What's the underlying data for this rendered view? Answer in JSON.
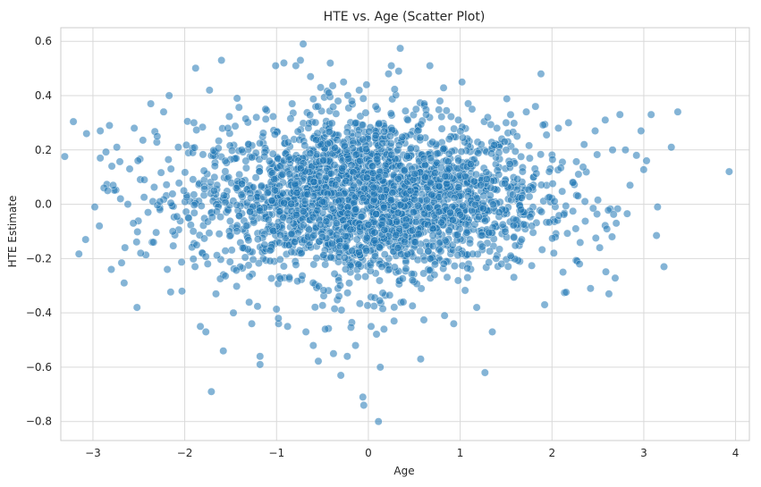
{
  "chart_data": {
    "type": "scatter",
    "title": "HTE vs. Age (Scatter Plot)",
    "xlabel": "Age",
    "ylabel": "HTE Estimate",
    "xlim": [
      -3.35,
      4.15
    ],
    "ylim": [
      -0.87,
      0.65
    ],
    "xticks": [
      -3,
      -2,
      -1,
      0,
      1,
      2,
      3,
      4
    ],
    "xtick_labels": [
      "−3",
      "−2",
      "−1",
      "0",
      "1",
      "2",
      "3",
      "4"
    ],
    "yticks": [
      -0.8,
      -0.6,
      -0.4,
      -0.2,
      0.0,
      0.2,
      0.4,
      0.6
    ],
    "ytick_labels": [
      "−0.8",
      "−0.6",
      "−0.4",
      "−0.2",
      "0.0",
      "0.2",
      "0.4",
      "0.6"
    ],
    "grid": true,
    "point_color": "#1f77b4",
    "point_alpha": 0.55,
    "series": [
      {
        "name": "HTE",
        "points": [
          [
            -3.07,
            0.26
          ],
          [
            -3.08,
            -0.13
          ],
          [
            -2.98,
            -0.01
          ],
          [
            -2.92,
            0.17
          ],
          [
            -2.92,
            0.27
          ],
          [
            -2.93,
            -0.08
          ],
          [
            -2.88,
            0.06
          ],
          [
            -2.84,
            0.05
          ],
          [
            -2.82,
            0.29
          ],
          [
            -2.8,
            -0.24
          ],
          [
            -2.78,
            0.07
          ],
          [
            -2.74,
            0.21
          ],
          [
            -2.7,
            0.02
          ],
          [
            -2.66,
            -0.29
          ],
          [
            -2.62,
            0.0
          ],
          [
            -2.6,
            0.13
          ],
          [
            -2.56,
            -0.07
          ],
          [
            -2.55,
            0.28
          ],
          [
            -2.52,
            -0.38
          ],
          [
            -2.51,
            0.16
          ],
          [
            -2.48,
            -0.18
          ],
          [
            -2.44,
            0.09
          ],
          [
            -2.4,
            -0.03
          ],
          [
            -2.37,
            0.37
          ],
          [
            -2.34,
            -0.14
          ],
          [
            -2.3,
            0.25
          ],
          [
            -2.27,
            0.01
          ],
          [
            -2.23,
            0.34
          ],
          [
            -2.19,
            -0.24
          ],
          [
            -2.17,
            0.4
          ],
          [
            -2.15,
            0.13
          ],
          [
            -2.13,
            -0.1
          ],
          [
            -2.07,
            0.21
          ],
          [
            -2.03,
            -0.32
          ],
          [
            -2.01,
            0.05
          ],
          [
            -1.96,
            -0.05
          ],
          [
            -1.9,
            0.3
          ],
          [
            -1.87,
            -0.15
          ],
          [
            -1.83,
            -0.45
          ],
          [
            -1.77,
            -0.47
          ],
          [
            -1.73,
            0.42
          ],
          [
            -1.71,
            -0.69
          ],
          [
            -1.68,
            0.05
          ],
          [
            -1.66,
            -0.33
          ],
          [
            -1.6,
            0.53
          ],
          [
            -1.58,
            -0.54
          ],
          [
            -1.53,
            0.28
          ],
          [
            -1.47,
            -0.4
          ],
          [
            -1.43,
            0.39
          ],
          [
            -1.38,
            0.2
          ],
          [
            -1.33,
            -0.08
          ],
          [
            -1.27,
            -0.44
          ],
          [
            -1.22,
            0.32
          ],
          [
            -1.18,
            -0.56
          ],
          [
            -1.18,
            -0.59
          ],
          [
            -1.12,
            0.35
          ],
          [
            -1.07,
            -0.17
          ],
          [
            -1.01,
            0.51
          ],
          [
            -0.98,
            -0.42
          ],
          [
            -0.92,
            0.52
          ],
          [
            -0.88,
            -0.45
          ],
          [
            -0.83,
            0.37
          ],
          [
            -0.79,
            0.51
          ],
          [
            -0.74,
            0.53
          ],
          [
            -0.71,
            0.59
          ],
          [
            -0.68,
            -0.47
          ],
          [
            -0.63,
            0.47
          ],
          [
            -0.6,
            -0.52
          ],
          [
            -0.55,
            0.36
          ],
          [
            -0.52,
            0.43
          ],
          [
            -0.47,
            -0.46
          ],
          [
            -0.43,
            0.41
          ],
          [
            -0.38,
            -0.55
          ],
          [
            -0.33,
            0.38
          ],
          [
            -0.3,
            -0.63
          ],
          [
            -0.27,
            0.45
          ],
          [
            -0.23,
            -0.56
          ],
          [
            -0.18,
            0.38
          ],
          [
            -0.14,
            -0.52
          ],
          [
            -0.1,
            0.42
          ],
          [
            -0.06,
            -0.71
          ],
          [
            -0.05,
            -0.74
          ],
          [
            -0.02,
            0.44
          ],
          [
            0.03,
            -0.45
          ],
          [
            0.08,
            0.36
          ],
          [
            0.11,
            -0.8
          ],
          [
            0.13,
            -0.6
          ],
          [
            0.17,
            -0.46
          ],
          [
            0.22,
            0.48
          ],
          [
            0.25,
            0.51
          ],
          [
            0.28,
            -0.43
          ],
          [
            0.33,
            0.49
          ],
          [
            0.38,
            -0.36
          ],
          [
            0.43,
            0.31
          ],
          [
            0.48,
            -0.28
          ],
          [
            0.52,
            0.35
          ],
          [
            0.57,
            -0.57
          ],
          [
            0.63,
            0.33
          ],
          [
            0.67,
            0.51
          ],
          [
            0.72,
            -0.26
          ],
          [
            0.78,
            0.38
          ],
          [
            0.83,
            -0.41
          ],
          [
            0.88,
            0.24
          ],
          [
            0.93,
            -0.44
          ],
          [
            0.98,
            0.31
          ],
          [
            1.02,
            0.45
          ],
          [
            1.08,
            -0.27
          ],
          [
            1.13,
            0.35
          ],
          [
            1.18,
            -0.38
          ],
          [
            1.23,
            0.22
          ],
          [
            1.27,
            -0.62
          ],
          [
            1.3,
            0.32
          ],
          [
            1.35,
            -0.47
          ],
          [
            1.4,
            0.28
          ],
          [
            1.45,
            -0.22
          ],
          [
            1.5,
            0.3
          ],
          [
            1.55,
            -0.19
          ],
          [
            1.62,
            0.25
          ],
          [
            1.67,
            -0.13
          ],
          [
            1.72,
            0.34
          ],
          [
            1.78,
            -0.08
          ],
          [
            1.82,
            0.36
          ],
          [
            1.88,
            0.48
          ],
          [
            1.92,
            -0.37
          ],
          [
            1.97,
            0.12
          ],
          [
            2.02,
            -0.18
          ],
          [
            2.07,
            0.28
          ],
          [
            2.12,
            -0.25
          ],
          [
            2.18,
            0.3
          ],
          [
            2.23,
            0.08
          ],
          [
            2.3,
            -0.22
          ],
          [
            2.35,
            0.22
          ],
          [
            2.42,
            -0.31
          ],
          [
            2.47,
            0.27
          ],
          [
            2.52,
            -0.16
          ],
          [
            2.58,
            0.31
          ],
          [
            2.62,
            -0.33
          ],
          [
            2.66,
            0.2
          ],
          [
            2.7,
            -0.07
          ],
          [
            2.74,
            0.33
          ],
          [
            2.8,
            0.2
          ],
          [
            2.85,
            0.07
          ],
          [
            2.92,
            0.18
          ],
          [
            2.97,
            0.27
          ],
          [
            3.03,
            0.16
          ],
          [
            3.08,
            0.33
          ],
          [
            3.15,
            -0.01
          ],
          [
            3.22,
            -0.23
          ],
          [
            3.3,
            0.21
          ],
          [
            3.37,
            0.34
          ],
          [
            3.93,
            0.12
          ]
        ]
      }
    ]
  }
}
